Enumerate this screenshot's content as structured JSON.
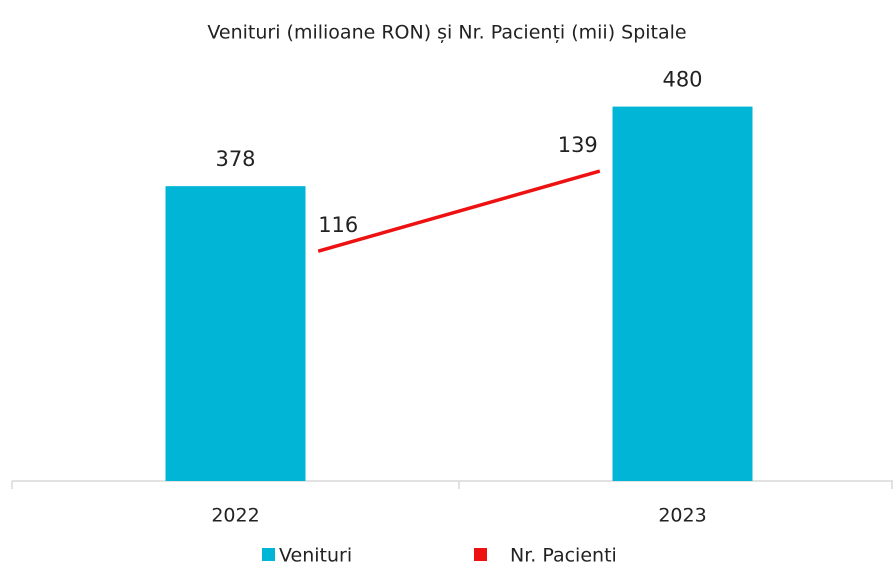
{
  "chart_data": {
    "type": "bar-line",
    "title": "Venituri (milioane RON) și Nr. Pacienți (mii) Spitale",
    "categories": [
      "2022",
      "2023"
    ],
    "series": [
      {
        "name": "Venituri",
        "type": "bar",
        "color": "#00b5d6",
        "values": [
          378,
          480
        ]
      },
      {
        "name": "Nr. Pacienti",
        "type": "line",
        "color": "#ee1111",
        "axis": "y2",
        "values": [
          116,
          139
        ]
      }
    ],
    "ylim": [
      0,
      500
    ],
    "y2lim": [
      50,
      162
    ],
    "legend": "bottom"
  }
}
